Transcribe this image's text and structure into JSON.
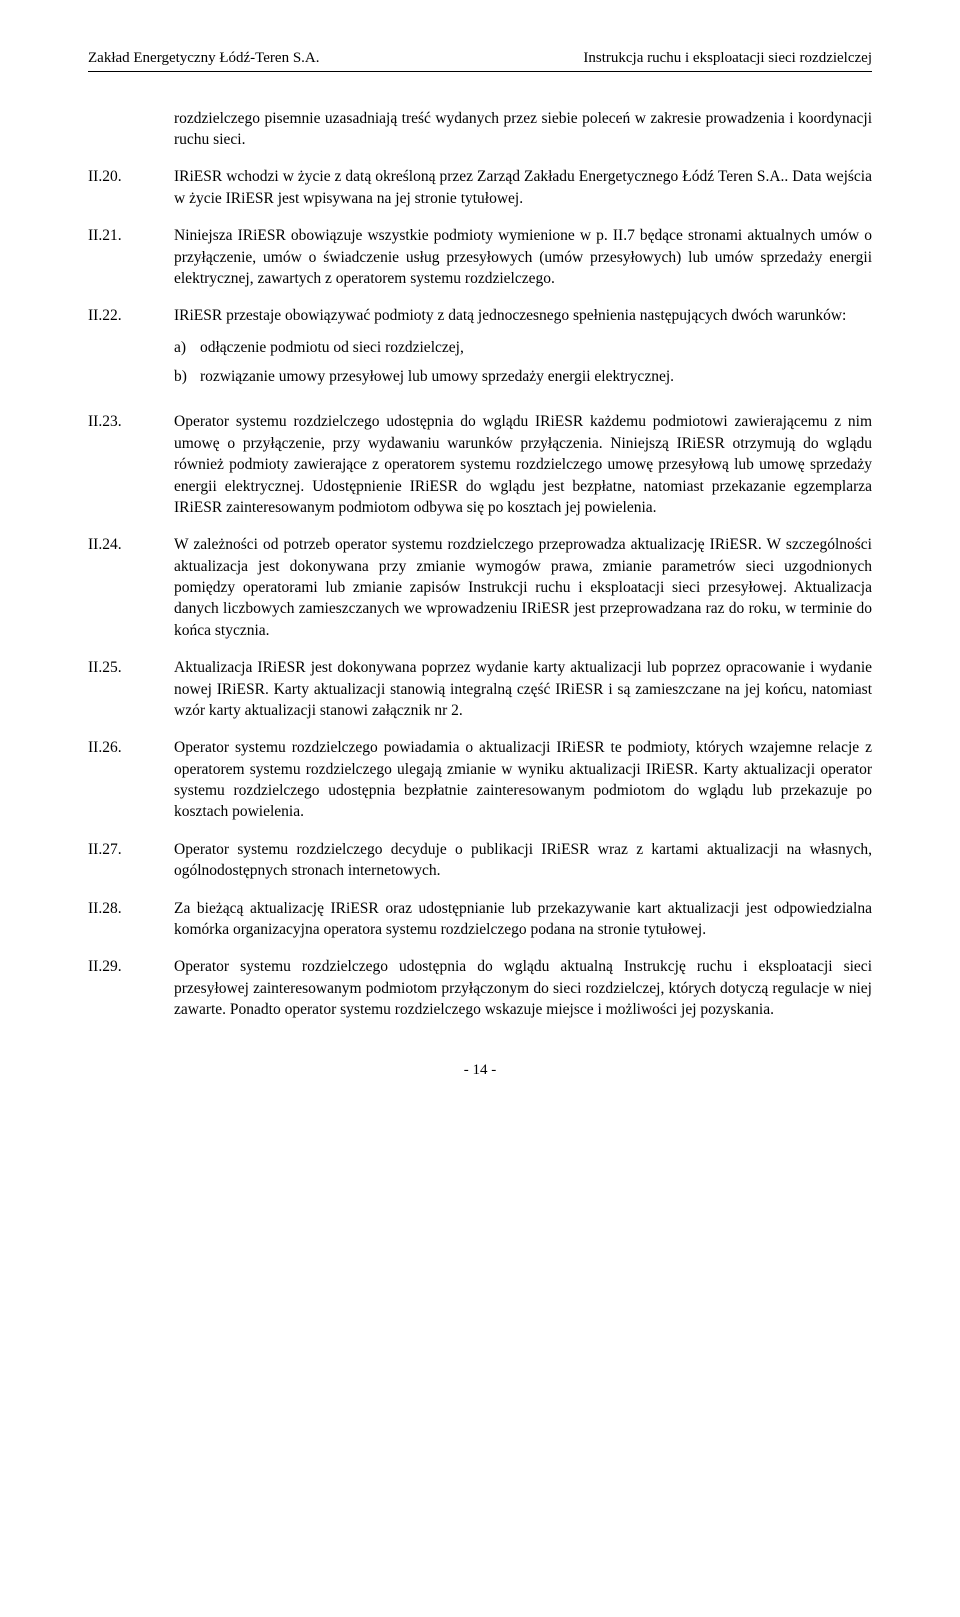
{
  "header": {
    "left": "Zakład Energetyczny Łódź-Teren S.A.",
    "right": "Instrukcja ruchu i eksploatacji sieci rozdzielczej"
  },
  "intro": "rozdzielczego pisemnie uzasadniają treść wydanych przez siebie poleceń w zakresie prowadzenia i koordynacji ruchu sieci.",
  "items": [
    {
      "label": "II.20.",
      "text": "IRiESR wchodzi w życie z datą określoną przez Zarząd Zakładu Energetycznego Łódź Teren S.A.. Data wejścia w życie IRiESR jest wpisywana na jej stronie tytułowej."
    },
    {
      "label": "II.21.",
      "text": "Niniejsza IRiESR obowiązuje wszystkie podmioty wymienione w p. II.7 będące stronami aktualnych umów o przyłączenie, umów o świadczenie usług przesyłowych (umów przesyłowych) lub umów sprzedaży energii elektrycznej, zawartych z operatorem systemu rozdzielczego."
    },
    {
      "label": "II.22.",
      "text": "IRiESR przestaje obowiązywać podmioty z datą jednoczesnego spełnienia następujących dwóch warunków:",
      "sublist": [
        {
          "marker": "a)",
          "text": "odłączenie podmiotu od sieci rozdzielczej,"
        },
        {
          "marker": "b)",
          "text": "rozwiązanie umowy przesyłowej lub umowy sprzedaży energii elektrycznej."
        }
      ]
    },
    {
      "label": "II.23.",
      "text": "Operator systemu rozdzielczego udostępnia do wglądu IRiESR każdemu podmiotowi zawierającemu z nim umowę o przyłączenie, przy wydawaniu warunków przyłączenia. Niniejszą IRiESR otrzymują do wglądu również podmioty zawierające z operatorem systemu rozdzielczego umowę przesyłową lub umowę sprzedaży energii elektrycznej. Udostępnienie IRiESR do wglądu jest bezpłatne, natomiast przekazanie egzemplarza IRiESR zainteresowanym podmiotom odbywa się po kosztach jej powielenia."
    },
    {
      "label": "II.24.",
      "text": "W zależności od potrzeb operator systemu rozdzielczego przeprowadza aktualizację IRiESR. W szczególności aktualizacja jest dokonywana przy zmianie wymogów prawa, zmianie parametrów sieci uzgodnionych pomiędzy operatorami lub zmianie zapisów Instrukcji ruchu i eksploatacji sieci przesyłowej. Aktualizacja danych liczbowych zamieszczanych we wprowadzeniu IRiESR jest przeprowadzana raz do roku, w terminie do końca stycznia."
    },
    {
      "label": "II.25.",
      "text": "Aktualizacja IRiESR jest dokonywana poprzez wydanie karty aktualizacji lub poprzez opracowanie i wydanie nowej IRiESR. Karty aktualizacji stanowią integralną część IRiESR i są zamieszczane na jej końcu, natomiast wzór karty aktualizacji stanowi załącznik nr 2."
    },
    {
      "label": "II.26.",
      "text": "Operator systemu rozdzielczego powiadamia o aktualizacji IRiESR te podmioty, których wzajemne relacje z operatorem systemu rozdzielczego ulegają zmianie w wyniku aktualizacji IRiESR. Karty aktualizacji operator systemu rozdzielczego udostępnia bezpłatnie zainteresowanym podmiotom do wglądu lub przekazuje po kosztach powielenia."
    },
    {
      "label": "II.27.",
      "text": "Operator systemu rozdzielczego decyduje o publikacji IRiESR wraz z kartami aktualizacji na własnych, ogólnodostępnych stronach internetowych."
    },
    {
      "label": "II.28.",
      "text": "Za bieżącą aktualizację IRiESR oraz udostępnianie lub przekazywanie kart aktualizacji jest odpowiedzialna komórka organizacyjna operatora systemu rozdzielczego podana na stronie tytułowej."
    },
    {
      "label": "II.29.",
      "text": "Operator systemu rozdzielczego udostępnia do wglądu aktualną Instrukcję ruchu i eksploatacji sieci przesyłowej zainteresowanym podmiotom przyłączonym do sieci rozdzielczej, których dotyczą regulacje w niej zawarte. Ponadto operator systemu rozdzielczego wskazuje miejsce i możliwości jej pozyskania."
    }
  ],
  "footer": "- 14 -"
}
